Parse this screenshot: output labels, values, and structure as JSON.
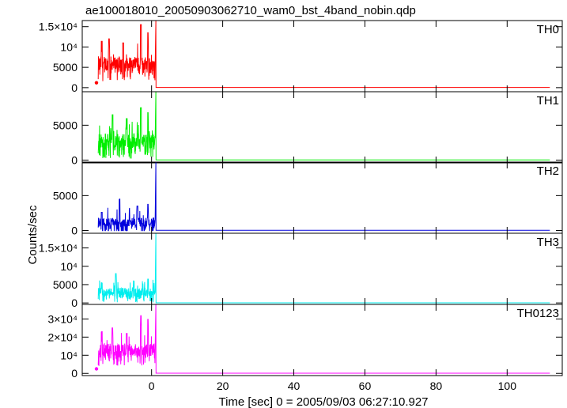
{
  "chart_data": {
    "type": "line",
    "title": "ae100018010_20050903062710_wam0_bst_4band_nobin.qdp",
    "xlabel": "Time [sec] 0 = 2005/09/03 06:27:10.927",
    "ylabel": "Counts/sec",
    "xlim": [
      -19.5,
      115.5
    ],
    "xticks": [
      {
        "value": 0,
        "label": "0"
      },
      {
        "value": 20,
        "label": "20"
      },
      {
        "value": 40,
        "label": "40"
      },
      {
        "value": 60,
        "label": "60"
      },
      {
        "value": 80,
        "label": "80"
      },
      {
        "value": 100,
        "label": "100"
      }
    ],
    "grid": false,
    "panels": [
      {
        "name": "TH0",
        "color": "#ff0000",
        "ylim": [
          -1000,
          16500
        ],
        "yticks": [
          {
            "value": 0,
            "label": "0"
          },
          {
            "value": 5000,
            "label": "5000"
          },
          {
            "value": 10000,
            "label": "10⁴"
          },
          {
            "value": 15000,
            "label": "1.5×10⁴"
          }
        ],
        "onset_marker": {
          "x": -15.5,
          "y": 1200
        },
        "burst": {
          "start": -15,
          "end": 1.2,
          "mean": 6000,
          "noise": 1700,
          "peaks": [
            [
              -14,
              11500
            ],
            [
              -12,
              12000
            ],
            [
              -8,
              11000
            ],
            [
              -3,
              15500
            ],
            [
              -1,
              13500
            ]
          ],
          "spike": {
            "x": 1.2,
            "y": 16500
          }
        },
        "baseline": {
          "start": 1.2,
          "end": 112,
          "level": 50
        }
      },
      {
        "name": "TH1",
        "color": "#00ee00",
        "ylim": [
          -400,
          9800
        ],
        "yticks": [
          {
            "value": 0,
            "label": "0"
          },
          {
            "value": 5000,
            "label": "5000"
          }
        ],
        "onset_marker": null,
        "burst": {
          "start": -15,
          "end": 1.2,
          "mean": 2800,
          "noise": 1000,
          "peaks": [
            [
              -11,
              6500
            ],
            [
              -7,
              6000
            ],
            [
              -3,
              7500
            ],
            [
              -1,
              6800
            ]
          ],
          "spike": {
            "x": 1.2,
            "y": 9800
          }
        },
        "baseline": {
          "start": 1.2,
          "end": 112,
          "level": 30
        }
      },
      {
        "name": "TH2",
        "color": "#0000dd",
        "ylim": [
          -400,
          9800
        ],
        "yticks": [
          {
            "value": 0,
            "label": "0"
          },
          {
            "value": 5000,
            "label": "5000"
          }
        ],
        "onset_marker": null,
        "burst": {
          "start": -15,
          "end": 1.2,
          "mean": 1200,
          "noise": 650,
          "peaks": [
            [
              -14,
              2600
            ],
            [
              -9,
              4500
            ],
            [
              -4,
              3500
            ],
            [
              -1,
              3800
            ]
          ],
          "spike": {
            "x": 1.2,
            "y": 9800
          }
        },
        "baseline": {
          "start": 1.2,
          "end": 112,
          "level": 20
        }
      },
      {
        "name": "TH3",
        "color": "#00eeee",
        "ylim": [
          -400,
          19000
        ],
        "yticks": [
          {
            "value": 0,
            "label": "0"
          },
          {
            "value": 5000,
            "label": "5000"
          },
          {
            "value": 10000,
            "label": "10⁴"
          },
          {
            "value": 15000,
            "label": "1.5×10⁴"
          }
        ],
        "onset_marker": null,
        "burst": {
          "start": -15,
          "end": 1.2,
          "mean": 3000,
          "noise": 1100,
          "peaks": [
            [
              -14,
              5500
            ],
            [
              -10,
              8000
            ],
            [
              -5,
              6000
            ],
            [
              -1,
              6500
            ]
          ],
          "spike": {
            "x": 1.2,
            "y": 19000
          }
        },
        "baseline": {
          "start": 1.2,
          "end": 112,
          "level": 30
        }
      },
      {
        "name": "TH0123",
        "color": "#ff00ff",
        "ylim": [
          -1200,
          38000
        ],
        "yticks": [
          {
            "value": 0,
            "label": "0"
          },
          {
            "value": 10000,
            "label": "10⁴"
          },
          {
            "value": 20000,
            "label": "2×10⁴"
          },
          {
            "value": 30000,
            "label": "3×10⁴"
          }
        ],
        "onset_marker": {
          "x": -15.5,
          "y": 2500
        },
        "burst": {
          "start": -15,
          "end": 1.2,
          "mean": 13000,
          "noise": 3500,
          "peaks": [
            [
              -14,
              23000
            ],
            [
              -11,
              25000
            ],
            [
              -7,
              22000
            ],
            [
              -3,
              32000
            ],
            [
              -1,
              30000
            ]
          ],
          "spike": {
            "x": 1.2,
            "y": 38000
          }
        },
        "baseline": {
          "start": 1.2,
          "end": 112,
          "level": 100
        }
      }
    ]
  }
}
